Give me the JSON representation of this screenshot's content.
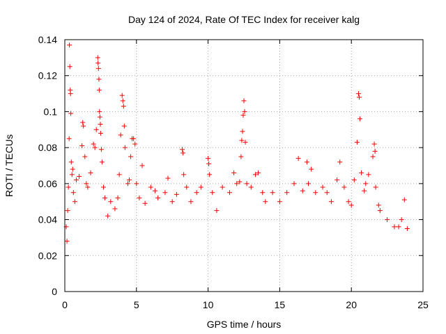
{
  "chart_data": {
    "type": "scatter",
    "title": "Day 124 of 2024, Rate Of TEC Index for receiver kalg",
    "xlabel": "GPS time / hours",
    "ylabel": "ROTI / TECUs",
    "xlim": [
      0,
      25
    ],
    "ylim": [
      0,
      0.14
    ],
    "xticks": [
      0,
      5,
      10,
      15,
      20,
      25
    ],
    "xtick_labels": [
      "0",
      "5",
      "10",
      "15",
      "20",
      "25"
    ],
    "yticks": [
      0,
      0.02,
      0.04,
      0.06,
      0.08,
      0.1,
      0.12,
      0.14
    ],
    "ytick_labels": [
      "0",
      "0.02",
      "0.04",
      "0.06",
      "0.08",
      "0.1",
      "0.12",
      "0.14"
    ],
    "grid": true,
    "marker": "+",
    "marker_color": "#ff0000",
    "series": [
      {
        "name": "ROTI",
        "color": "#ff0000",
        "points": [
          [
            0.1,
            0.036
          ],
          [
            0.15,
            0.028
          ],
          [
            0.2,
            0.045
          ],
          [
            0.25,
            0.058
          ],
          [
            0.3,
            0.085
          ],
          [
            0.32,
            0.137
          ],
          [
            0.35,
            0.125
          ],
          [
            0.38,
            0.112
          ],
          [
            0.4,
            0.11
          ],
          [
            0.42,
            0.099
          ],
          [
            0.45,
            0.072
          ],
          [
            0.5,
            0.065
          ],
          [
            0.55,
            0.068
          ],
          [
            0.6,
            0.055
          ],
          [
            0.7,
            0.05
          ],
          [
            0.8,
            0.062
          ],
          [
            1.0,
            0.064
          ],
          [
            1.2,
            0.081
          ],
          [
            1.25,
            0.094
          ],
          [
            1.3,
            0.092
          ],
          [
            1.4,
            0.075
          ],
          [
            1.5,
            0.06
          ],
          [
            1.6,
            0.058
          ],
          [
            1.8,
            0.066
          ],
          [
            2.0,
            0.082
          ],
          [
            2.1,
            0.08
          ],
          [
            2.2,
            0.09
          ],
          [
            2.3,
            0.13
          ],
          [
            2.32,
            0.127
          ],
          [
            2.35,
            0.124
          ],
          [
            2.38,
            0.118
          ],
          [
            2.4,
            0.112
          ],
          [
            2.42,
            0.1
          ],
          [
            2.45,
            0.097
          ],
          [
            2.48,
            0.093
          ],
          [
            2.5,
            0.088
          ],
          [
            2.55,
            0.079
          ],
          [
            2.6,
            0.072
          ],
          [
            2.7,
            0.058
          ],
          [
            2.8,
            0.052
          ],
          [
            3.0,
            0.042
          ],
          [
            3.2,
            0.05
          ],
          [
            3.5,
            0.046
          ],
          [
            3.7,
            0.052
          ],
          [
            3.8,
            0.065
          ],
          [
            3.9,
            0.087
          ],
          [
            4.0,
            0.109
          ],
          [
            4.05,
            0.106
          ],
          [
            4.1,
            0.103
          ],
          [
            4.15,
            0.092
          ],
          [
            4.2,
            0.08
          ],
          [
            4.4,
            0.06
          ],
          [
            4.5,
            0.062
          ],
          [
            4.6,
            0.075
          ],
          [
            4.7,
            0.085
          ],
          [
            4.8,
            0.085
          ],
          [
            4.9,
            0.082
          ],
          [
            5.0,
            0.06
          ],
          [
            5.2,
            0.052
          ],
          [
            5.4,
            0.07
          ],
          [
            5.6,
            0.049
          ],
          [
            6.0,
            0.058
          ],
          [
            6.3,
            0.056
          ],
          [
            6.5,
            0.052
          ],
          [
            7.0,
            0.055
          ],
          [
            7.2,
            0.063
          ],
          [
            7.5,
            0.05
          ],
          [
            7.8,
            0.054
          ],
          [
            8.2,
            0.079
          ],
          [
            8.25,
            0.077
          ],
          [
            8.3,
            0.065
          ],
          [
            8.5,
            0.058
          ],
          [
            8.8,
            0.05
          ],
          [
            9.2,
            0.055
          ],
          [
            9.5,
            0.058
          ],
          [
            10.0,
            0.074
          ],
          [
            10.05,
            0.071
          ],
          [
            10.1,
            0.065
          ],
          [
            10.3,
            0.055
          ],
          [
            10.6,
            0.045
          ],
          [
            11.0,
            0.058
          ],
          [
            11.5,
            0.055
          ],
          [
            11.8,
            0.066
          ],
          [
            12.0,
            0.06
          ],
          [
            12.2,
            0.061
          ],
          [
            12.3,
            0.075
          ],
          [
            12.35,
            0.084
          ],
          [
            12.4,
            0.089
          ],
          [
            12.45,
            0.098
          ],
          [
            12.5,
            0.106
          ],
          [
            12.55,
            0.1
          ],
          [
            12.6,
            0.083
          ],
          [
            12.7,
            0.06
          ],
          [
            13.0,
            0.058
          ],
          [
            13.3,
            0.065
          ],
          [
            13.5,
            0.066
          ],
          [
            13.8,
            0.055
          ],
          [
            14.0,
            0.05
          ],
          [
            14.5,
            0.055
          ],
          [
            15.0,
            0.05
          ],
          [
            15.5,
            0.055
          ],
          [
            16.0,
            0.06
          ],
          [
            16.3,
            0.074
          ],
          [
            16.6,
            0.056
          ],
          [
            16.9,
            0.072
          ],
          [
            17.0,
            0.06
          ],
          [
            17.2,
            0.068
          ],
          [
            17.5,
            0.055
          ],
          [
            18.0,
            0.058
          ],
          [
            18.3,
            0.055
          ],
          [
            18.6,
            0.05
          ],
          [
            19.0,
            0.062
          ],
          [
            19.2,
            0.072
          ],
          [
            19.5,
            0.058
          ],
          [
            19.8,
            0.05
          ],
          [
            20.0,
            0.048
          ],
          [
            20.2,
            0.062
          ],
          [
            20.4,
            0.083
          ],
          [
            20.5,
            0.11
          ],
          [
            20.55,
            0.108
          ],
          [
            20.6,
            0.096
          ],
          [
            20.7,
            0.066
          ],
          [
            20.9,
            0.056
          ],
          [
            21.0,
            0.06
          ],
          [
            21.2,
            0.065
          ],
          [
            21.5,
            0.075
          ],
          [
            21.6,
            0.082
          ],
          [
            21.65,
            0.078
          ],
          [
            21.7,
            0.058
          ],
          [
            21.9,
            0.048
          ],
          [
            22.0,
            0.045
          ],
          [
            22.5,
            0.04
          ],
          [
            23.0,
            0.036
          ],
          [
            23.3,
            0.036
          ],
          [
            23.5,
            0.04
          ],
          [
            23.7,
            0.051
          ],
          [
            23.9,
            0.035
          ]
        ]
      }
    ]
  }
}
